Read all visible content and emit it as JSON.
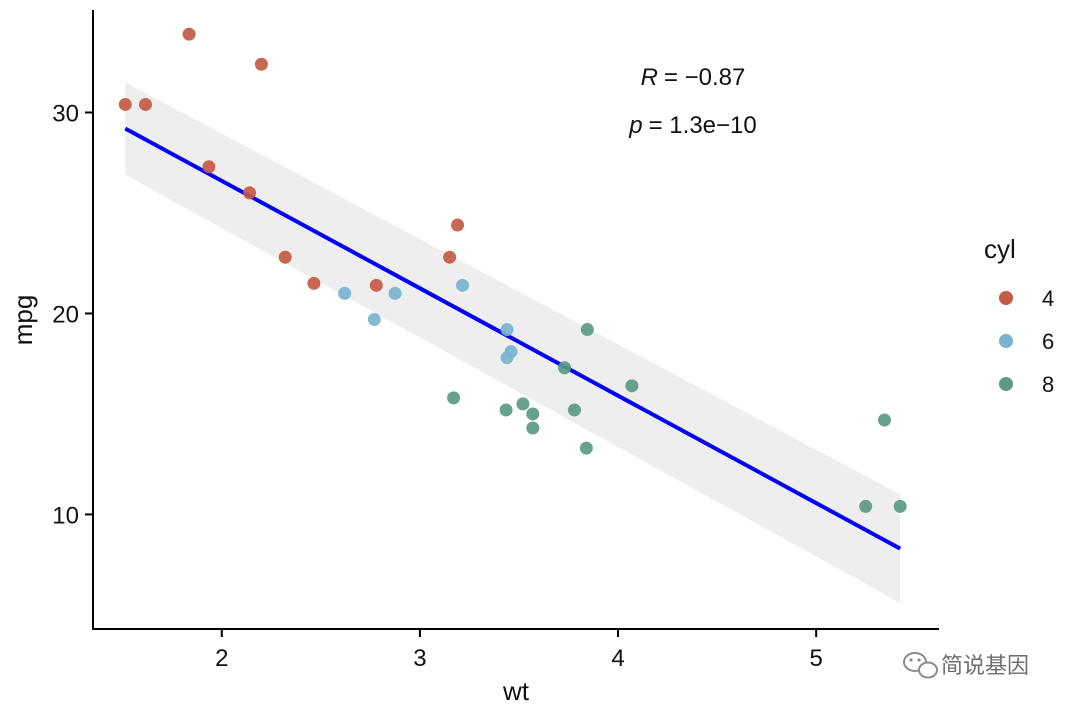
{
  "chart_data": {
    "type": "scatter",
    "xlabel": "wt",
    "ylabel": "mpg",
    "xlim": [
      1.35,
      5.62
    ],
    "ylim": [
      4.3,
      35.1
    ],
    "xticks": [
      2,
      3,
      4,
      5
    ],
    "yticks": [
      10,
      20,
      30
    ],
    "grid": false,
    "legend": {
      "title": "cyl",
      "position": "right",
      "entries": [
        {
          "label": "4",
          "color": "#c45a44"
        },
        {
          "label": "6",
          "color": "#79b3cf"
        },
        {
          "label": "8",
          "color": "#5a9a86"
        }
      ]
    },
    "series": [
      {
        "name": "4",
        "color": "#c45a44",
        "points": [
          {
            "x": 1.513,
            "y": 30.4
          },
          {
            "x": 1.615,
            "y": 30.4
          },
          {
            "x": 1.835,
            "y": 33.9
          },
          {
            "x": 1.935,
            "y": 27.3
          },
          {
            "x": 2.14,
            "y": 26.0
          },
          {
            "x": 2.2,
            "y": 32.4
          },
          {
            "x": 2.32,
            "y": 22.8
          },
          {
            "x": 2.465,
            "y": 21.5
          },
          {
            "x": 2.78,
            "y": 21.4
          },
          {
            "x": 3.15,
            "y": 22.8
          },
          {
            "x": 3.19,
            "y": 24.4
          }
        ]
      },
      {
        "name": "6",
        "color": "#79b3cf",
        "points": [
          {
            "x": 2.62,
            "y": 21.0
          },
          {
            "x": 2.77,
            "y": 19.7
          },
          {
            "x": 2.875,
            "y": 21.0
          },
          {
            "x": 3.215,
            "y": 21.4
          },
          {
            "x": 3.44,
            "y": 19.2
          },
          {
            "x": 3.44,
            "y": 17.8
          },
          {
            "x": 3.46,
            "y": 18.1
          }
        ]
      },
      {
        "name": "8",
        "color": "#5a9a86",
        "points": [
          {
            "x": 3.17,
            "y": 15.8
          },
          {
            "x": 3.435,
            "y": 15.2
          },
          {
            "x": 3.52,
            "y": 15.5
          },
          {
            "x": 3.57,
            "y": 15.0
          },
          {
            "x": 3.57,
            "y": 14.3
          },
          {
            "x": 3.73,
            "y": 17.3
          },
          {
            "x": 3.78,
            "y": 15.2
          },
          {
            "x": 3.84,
            "y": 13.3
          },
          {
            "x": 3.845,
            "y": 19.2
          },
          {
            "x": 4.07,
            "y": 16.4
          },
          {
            "x": 5.25,
            "y": 10.4
          },
          {
            "x": 5.345,
            "y": 14.7
          },
          {
            "x": 5.424,
            "y": 10.4
          }
        ]
      }
    ],
    "regression": {
      "color": "#0000ff",
      "band_color": "#ebebeb",
      "x": [
        1.513,
        5.424
      ],
      "y": [
        29.2,
        8.3
      ],
      "ci_lower": [
        26.9,
        5.6
      ],
      "ci_upper": [
        31.5,
        11.0
      ]
    },
    "stats": {
      "r_label": "R",
      "r_value": "= −0.87",
      "p_label": "p",
      "p_value": "= 1.3e−10"
    }
  },
  "watermark": {
    "text": "简说基因",
    "icon": "wechat-icon"
  }
}
